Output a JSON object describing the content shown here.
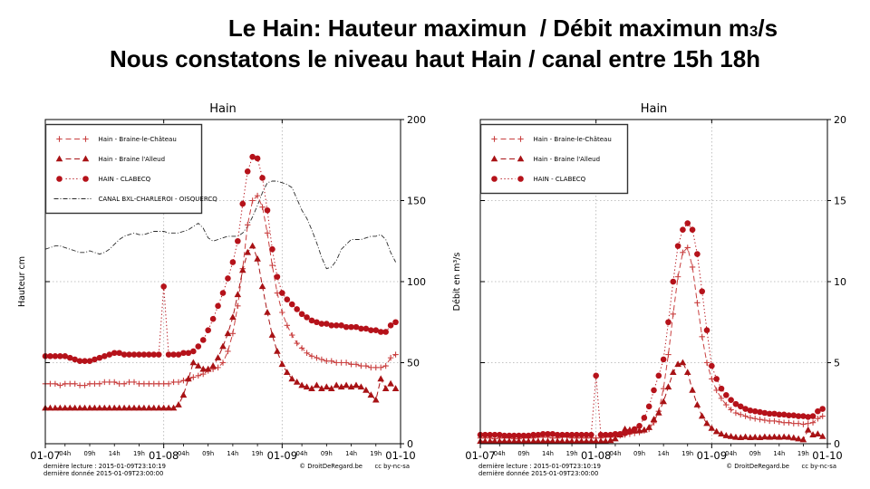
{
  "slide": {
    "title_line1_prefix": "Le Hain: Hauteur maximun  / Débit maximun m",
    "title_line1_sub": "3",
    "title_line1_suffix": "/s",
    "title_line2": "Nous constatons le niveau haut Hain / canal entre 15h 18h"
  },
  "footer": {
    "line1": "dernière lecture : 2015-01-09T23:10:19",
    "line2": "dernière donnée  2015-01-09T23:00:00",
    "credit": "© DroitDeRegard.be",
    "license": "cc by-nc-sa"
  },
  "colors": {
    "red_light": "#c94040",
    "red_dark": "#b5121a",
    "canal_black": "#2a2a2a",
    "grid": "#b0b0b0",
    "spine": "#000000"
  },
  "chart_data": [
    {
      "type": "line",
      "title": "Hain",
      "ylabel": "Hauteur cm",
      "ylim": [
        0,
        200
      ],
      "yticks": [
        0,
        50,
        100,
        150,
        200
      ],
      "ytick_side": "right",
      "grid": true,
      "legend_position": "upper left",
      "hours_total": 72,
      "x_start": "2015-01-07T00:00",
      "x_end": "2015-01-10T00:00",
      "xticks_major": [
        {
          "h": 0,
          "label": "01-07"
        },
        {
          "h": 24,
          "label": "01-08"
        },
        {
          "h": 48,
          "label": "01-09"
        },
        {
          "h": 72,
          "label": "01-10"
        }
      ],
      "xticks_minor": [
        {
          "h": 4,
          "label": "04h"
        },
        {
          "h": 9,
          "label": "09h"
        },
        {
          "h": 14,
          "label": "14h"
        },
        {
          "h": 19,
          "label": "19h"
        },
        {
          "h": 28,
          "label": "04h"
        },
        {
          "h": 33,
          "label": "09h"
        },
        {
          "h": 38,
          "label": "14h"
        },
        {
          "h": 43,
          "label": "19h"
        },
        {
          "h": 52,
          "label": "04h"
        },
        {
          "h": 57,
          "label": "09h"
        },
        {
          "h": 62,
          "label": "14h"
        },
        {
          "h": 67,
          "label": "19h"
        }
      ],
      "series": [
        {
          "name": "Hain - Braine-le-Château",
          "marker": "plus",
          "linestyle": "dashed",
          "color": "#c94040",
          "values": [
            37,
            37,
            37,
            36,
            37,
            37,
            37,
            36,
            36,
            37,
            37,
            37,
            38,
            38,
            38,
            37,
            37,
            38,
            38,
            37,
            37,
            37,
            37,
            37,
            37,
            37,
            38,
            38,
            39,
            40,
            41,
            42,
            43,
            45,
            46,
            47,
            50,
            57,
            68,
            85,
            108,
            135,
            150,
            153,
            146,
            130,
            110,
            93,
            81,
            73,
            67,
            62,
            59,
            56,
            54,
            53,
            52,
            51,
            51,
            50,
            50,
            50,
            49,
            49,
            48,
            48,
            47,
            47,
            47,
            48,
            53,
            55
          ]
        },
        {
          "name": "Hain - Braine l'Alleud",
          "marker": "triangle",
          "linestyle": "dashed",
          "color": "#a81215",
          "values": [
            22,
            22,
            22,
            22,
            22,
            22,
            22,
            22,
            22,
            22,
            22,
            22,
            22,
            22,
            22,
            22,
            22,
            22,
            22,
            22,
            22,
            22,
            22,
            22,
            22,
            22,
            22,
            24,
            30,
            40,
            50,
            48,
            46,
            46,
            48,
            53,
            60,
            68,
            78,
            92,
            107,
            118,
            122,
            114,
            97,
            81,
            67,
            57,
            49,
            44,
            40,
            38,
            36,
            35,
            34,
            36,
            34,
            35,
            34,
            36,
            35,
            36,
            35,
            36,
            35,
            33,
            30,
            27,
            40,
            34,
            37,
            34
          ]
        },
        {
          "name": "HAIN - CLABECQ",
          "marker": "circle",
          "linestyle": "dotted",
          "color": "#b5121a",
          "values": [
            54,
            54,
            54,
            54,
            54,
            53,
            52,
            51,
            51,
            51,
            52,
            53,
            54,
            55,
            56,
            56,
            55,
            55,
            55,
            55,
            55,
            55,
            55,
            55,
            97,
            55,
            55,
            55,
            56,
            56,
            57,
            60,
            64,
            70,
            77,
            85,
            93,
            102,
            112,
            125,
            148,
            168,
            177,
            176,
            164,
            144,
            120,
            103,
            93,
            89,
            86,
            83,
            80,
            78,
            76,
            75,
            74,
            74,
            73,
            73,
            73,
            72,
            72,
            72,
            71,
            71,
            70,
            70,
            69,
            69,
            73,
            75
          ]
        },
        {
          "name": "CANAL BXL-CHARLEROI - OISQUERCQ",
          "marker": "none",
          "linestyle": "dashdot",
          "color": "#2a2a2a",
          "values": [
            120,
            121,
            122,
            122,
            121,
            120,
            119,
            118,
            118,
            119,
            118,
            117,
            118,
            120,
            123,
            126,
            128,
            129,
            130,
            129,
            129,
            130,
            131,
            131,
            131,
            130,
            130,
            130,
            131,
            132,
            134,
            136,
            133,
            127,
            125,
            126,
            127,
            128,
            128,
            128,
            130,
            134,
            140,
            147,
            155,
            161,
            162,
            162,
            161,
            160,
            158,
            151,
            144,
            139,
            132,
            124,
            115,
            108,
            109,
            113,
            120,
            123,
            126,
            126,
            126,
            127,
            128,
            128,
            129,
            126,
            118,
            112
          ]
        }
      ]
    },
    {
      "type": "line",
      "title": "Hain",
      "ylabel": "Débit en m³/s",
      "ylim": [
        0,
        20
      ],
      "yticks": [
        0,
        5,
        10,
        15,
        20
      ],
      "ytick_side": "right",
      "grid": true,
      "legend_position": "upper left",
      "hours_total": 72,
      "x_start": "2015-01-07T00:00",
      "x_end": "2015-01-10T00:00",
      "xticks_major": [
        {
          "h": 0,
          "label": "01-07"
        },
        {
          "h": 24,
          "label": "01-08"
        },
        {
          "h": 48,
          "label": "01-09"
        },
        {
          "h": 72,
          "label": "01-10"
        }
      ],
      "xticks_minor": [
        {
          "h": 4,
          "label": "04h"
        },
        {
          "h": 9,
          "label": "09h"
        },
        {
          "h": 14,
          "label": "14h"
        },
        {
          "h": 19,
          "label": "19h"
        },
        {
          "h": 28,
          "label": "04h"
        },
        {
          "h": 33,
          "label": "09h"
        },
        {
          "h": 38,
          "label": "14h"
        },
        {
          "h": 43,
          "label": "19h"
        },
        {
          "h": 52,
          "label": "04h"
        },
        {
          "h": 57,
          "label": "09h"
        },
        {
          "h": 62,
          "label": "14h"
        },
        {
          "h": 67,
          "label": "19h"
        }
      ],
      "series": [
        {
          "name": "Hain - Braine-le-Château",
          "marker": "plus",
          "linestyle": "dashed",
          "color": "#c94040",
          "values": [
            0.35,
            0.35,
            0.35,
            0.3,
            0.35,
            0.35,
            0.35,
            0.3,
            0.3,
            0.35,
            0.35,
            0.35,
            0.4,
            0.4,
            0.4,
            0.35,
            0.35,
            0.4,
            0.4,
            0.35,
            0.35,
            0.35,
            0.35,
            0.35,
            0.35,
            0.35,
            0.4,
            0.4,
            0.45,
            0.5,
            0.55,
            0.6,
            0.65,
            0.7,
            0.8,
            0.9,
            1.3,
            2.0,
            3.4,
            5.5,
            8.0,
            10.3,
            11.8,
            12.1,
            10.9,
            8.7,
            6.6,
            5.0,
            4.0,
            3.3,
            2.8,
            2.4,
            2.1,
            1.9,
            1.8,
            1.7,
            1.6,
            1.55,
            1.5,
            1.45,
            1.4,
            1.4,
            1.35,
            1.3,
            1.3,
            1.25,
            1.25,
            1.2,
            1.25,
            1.3,
            1.55,
            1.7
          ]
        },
        {
          "name": "Hain - Braine l'Alleud",
          "marker": "triangle",
          "linestyle": "dashed",
          "color": "#a81215",
          "values": [
            0.15,
            0.15,
            0.15,
            0.15,
            0.15,
            0.15,
            0.15,
            0.15,
            0.15,
            0.15,
            0.15,
            0.15,
            0.15,
            0.15,
            0.15,
            0.15,
            0.15,
            0.15,
            0.15,
            0.15,
            0.15,
            0.15,
            0.15,
            0.15,
            0.15,
            0.15,
            0.15,
            0.2,
            0.3,
            0.55,
            0.9,
            0.85,
            0.8,
            0.8,
            0.85,
            1.0,
            1.5,
            1.9,
            2.6,
            3.5,
            4.4,
            4.9,
            5.0,
            4.4,
            3.3,
            2.4,
            1.7,
            1.25,
            0.95,
            0.75,
            0.6,
            0.5,
            0.45,
            0.4,
            0.38,
            0.42,
            0.38,
            0.4,
            0.38,
            0.42,
            0.4,
            0.42,
            0.4,
            0.42,
            0.4,
            0.36,
            0.3,
            0.25,
            0.85,
            0.55,
            0.6,
            0.45
          ]
        },
        {
          "name": "HAIN - CLABECQ",
          "marker": "circle",
          "linestyle": "dotted",
          "color": "#b5121a",
          "values": [
            0.55,
            0.55,
            0.55,
            0.55,
            0.55,
            0.5,
            0.5,
            0.5,
            0.5,
            0.5,
            0.5,
            0.55,
            0.55,
            0.6,
            0.6,
            0.6,
            0.55,
            0.55,
            0.55,
            0.55,
            0.55,
            0.55,
            0.55,
            0.55,
            4.2,
            0.55,
            0.55,
            0.55,
            0.6,
            0.6,
            0.65,
            0.75,
            0.9,
            1.1,
            1.6,
            2.3,
            3.3,
            4.2,
            5.2,
            7.5,
            10.0,
            12.2,
            13.2,
            13.6,
            13.2,
            11.7,
            9.4,
            7.0,
            4.8,
            4.0,
            3.4,
            3.0,
            2.7,
            2.45,
            2.3,
            2.15,
            2.05,
            2.0,
            1.95,
            1.9,
            1.85,
            1.85,
            1.8,
            1.8,
            1.75,
            1.75,
            1.7,
            1.7,
            1.65,
            1.7,
            2.0,
            2.15
          ]
        }
      ]
    }
  ]
}
